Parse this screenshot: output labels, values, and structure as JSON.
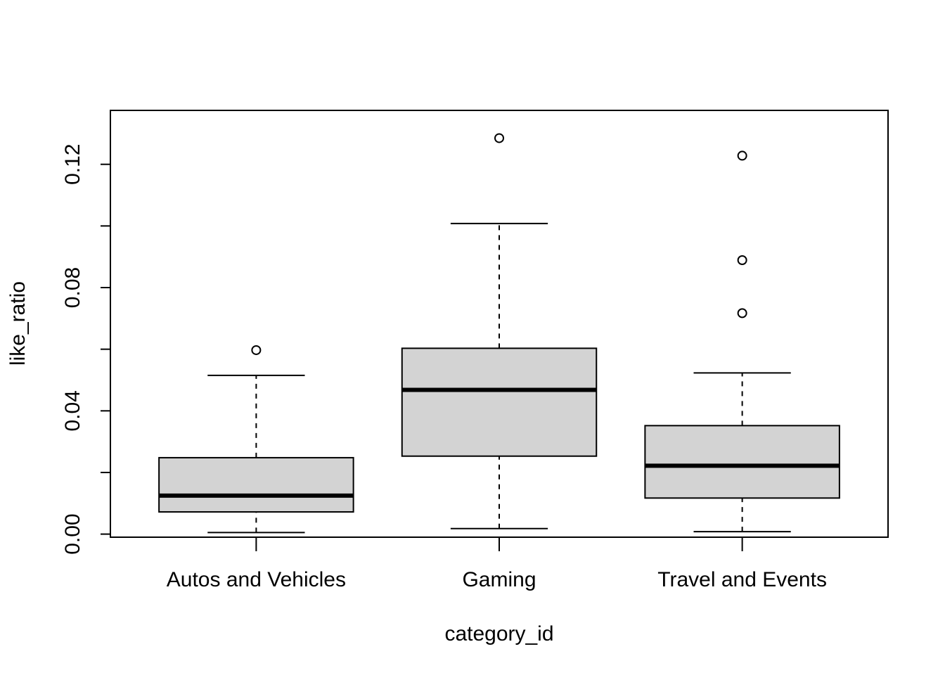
{
  "chart_data": {
    "type": "boxplot",
    "title": "",
    "xlabel": "category_id",
    "ylabel": "like_ratio",
    "categories": [
      "Autos and Vehicles",
      "Gaming",
      "Travel and Events"
    ],
    "y_ticks": [
      "0.00",
      "0.04",
      "0.08",
      "0.12"
    ],
    "ylim": [
      -0.001,
      0.1375
    ],
    "boxes": [
      {
        "category": "Autos and Vehicles",
        "whisker_low": 0.0005,
        "q1": 0.0072,
        "median": 0.0125,
        "q3": 0.0248,
        "whisker_high": 0.0515,
        "outliers": [
          0.0597
        ]
      },
      {
        "category": "Gaming",
        "whisker_low": 0.0018,
        "q1": 0.0253,
        "median": 0.0468,
        "q3": 0.0603,
        "whisker_high": 0.1008,
        "outliers": [
          0.1285
        ]
      },
      {
        "category": "Travel and Events",
        "whisker_low": 0.0008,
        "q1": 0.0117,
        "median": 0.0222,
        "q3": 0.0352,
        "whisker_high": 0.0523,
        "outliers": [
          0.1228,
          0.0889,
          0.0717
        ]
      }
    ],
    "box_fill": "#d3d3d3",
    "line_color": "#000000",
    "grid": false
  }
}
